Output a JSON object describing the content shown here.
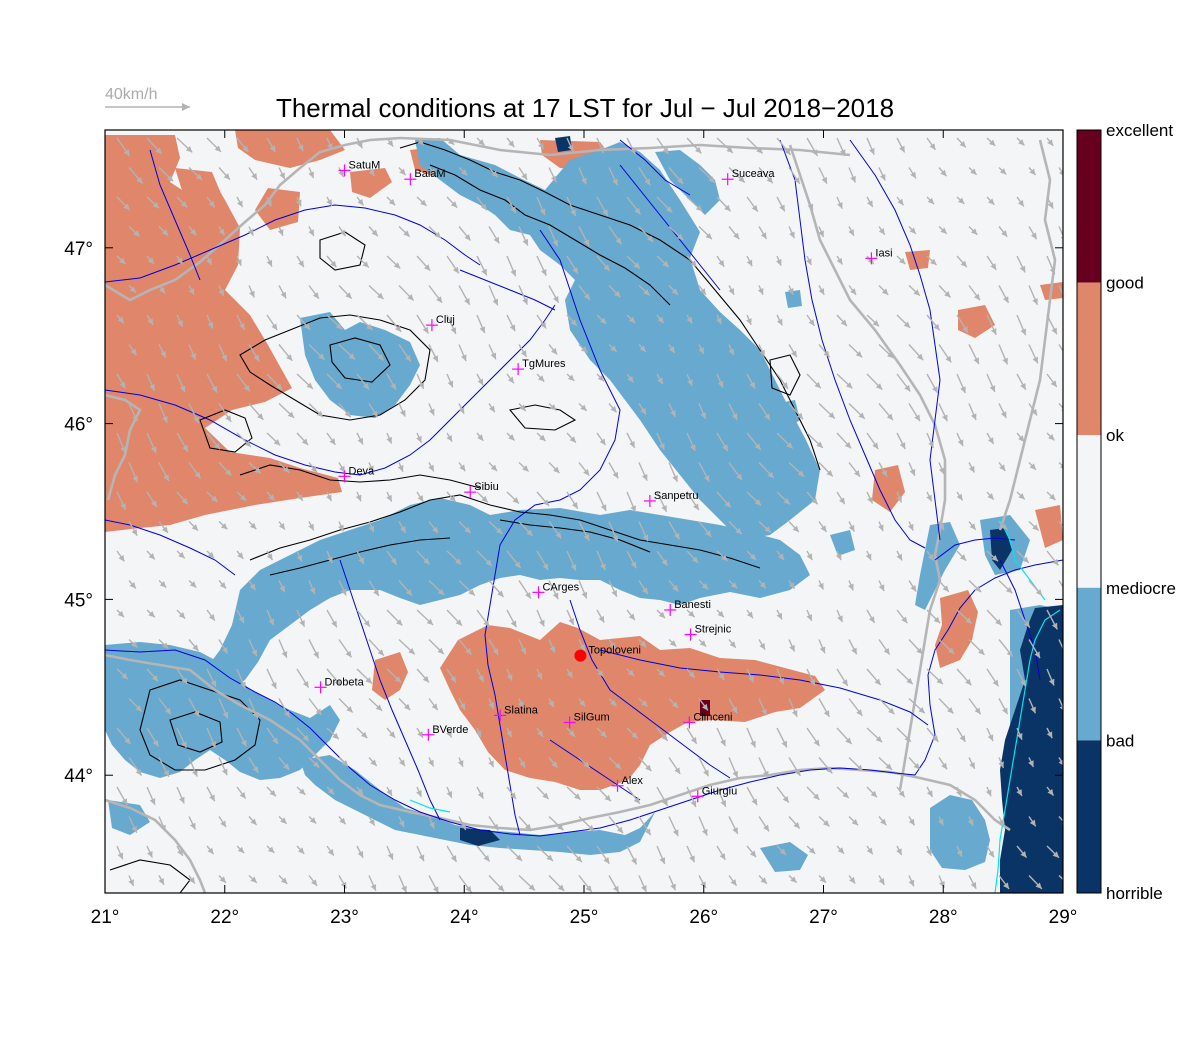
{
  "title": "Thermal conditions at 17 LST for Jul − Jul  2018−2018",
  "wind_reference": {
    "label": "40km/h",
    "color": "#aaaaaa"
  },
  "axes": {
    "lon_range": [
      21,
      29
    ],
    "lat_range": [
      43.33,
      47.67
    ],
    "x_ticks": [
      {
        "value": 21,
        "label": "21°"
      },
      {
        "value": 22,
        "label": "22°"
      },
      {
        "value": 23,
        "label": "23°"
      },
      {
        "value": 24,
        "label": "24°"
      },
      {
        "value": 25,
        "label": "25°"
      },
      {
        "value": 26,
        "label": "26°"
      },
      {
        "value": 27,
        "label": "27°"
      },
      {
        "value": 28,
        "label": "28°"
      },
      {
        "value": 29,
        "label": "29°"
      }
    ],
    "y_ticks": [
      {
        "value": 44,
        "label": "44°"
      },
      {
        "value": 45,
        "label": "45°"
      },
      {
        "value": 46,
        "label": "46°"
      },
      {
        "value": 47,
        "label": "47°"
      }
    ]
  },
  "legend": {
    "classes": [
      {
        "label": "excellent",
        "color": "#67001f"
      },
      {
        "label": "good",
        "color": "#e0866a"
      },
      {
        "label": "ok",
        "color": "#f4f5f7"
      },
      {
        "label": "mediocre",
        "color": "#67a9cf"
      },
      {
        "label": "bad",
        "color": "#053061"
      },
      {
        "label": "horrible",
        "color": ""
      }
    ],
    "segments": [
      {
        "color": "#67001f",
        "from": 1.0,
        "to": 0.8
      },
      {
        "color": "#e0866a",
        "from": 0.8,
        "to": 0.6
      },
      {
        "color": "#f4f5f7",
        "from": 0.6,
        "to": 0.4
      },
      {
        "color": "#67a9cf",
        "from": 0.4,
        "to": 0.2
      },
      {
        "color": "#0b3466",
        "from": 0.2,
        "to": 0.0
      }
    ]
  },
  "colors": {
    "background": "#f4f5f7",
    "good": "#e0866a",
    "bad": "#67a9cf",
    "horrible": "#0b3466",
    "excellent": "#67001f",
    "rivers": "#0000dd",
    "borders": "#b5b5b5",
    "contours": "#000000",
    "city_marker": "#ff00ff",
    "highlight_site": "#ff0000",
    "wind_arrows": "#b3b3b3"
  },
  "cities": [
    {
      "name": "SatuM",
      "lon": 23.0,
      "lat": 47.44
    },
    {
      "name": "BaiaM",
      "lon": 23.55,
      "lat": 47.39
    },
    {
      "name": "Suceava",
      "lon": 26.2,
      "lat": 47.39
    },
    {
      "name": "Iasi",
      "lon": 27.4,
      "lat": 46.94
    },
    {
      "name": "Cluj",
      "lon": 23.73,
      "lat": 46.56
    },
    {
      "name": "TgMures",
      "lon": 24.45,
      "lat": 46.31
    },
    {
      "name": "Deva",
      "lon": 23.0,
      "lat": 45.7
    },
    {
      "name": "Sibiu",
      "lon": 24.05,
      "lat": 45.61
    },
    {
      "name": "Sanpetru",
      "lon": 25.55,
      "lat": 45.56
    },
    {
      "name": "CArges",
      "lon": 24.62,
      "lat": 45.04
    },
    {
      "name": "Banesti",
      "lon": 25.72,
      "lat": 44.94
    },
    {
      "name": "Strejnic",
      "lon": 25.89,
      "lat": 44.8
    },
    {
      "name": "Drobeta",
      "lon": 22.8,
      "lat": 44.5
    },
    {
      "name": "Slatina",
      "lon": 24.3,
      "lat": 44.34
    },
    {
      "name": "SilGum",
      "lon": 24.88,
      "lat": 44.3
    },
    {
      "name": "Clinceni",
      "lon": 25.88,
      "lat": 44.3
    },
    {
      "name": "BVerde",
      "lon": 23.7,
      "lat": 44.23
    },
    {
      "name": "Alex",
      "lon": 25.28,
      "lat": 43.94
    },
    {
      "name": "Giurgiu",
      "lon": 25.95,
      "lat": 43.88
    }
  ],
  "highlight_site": {
    "name": "Topoloveni",
    "lon": 24.97,
    "lat": 44.68
  }
}
